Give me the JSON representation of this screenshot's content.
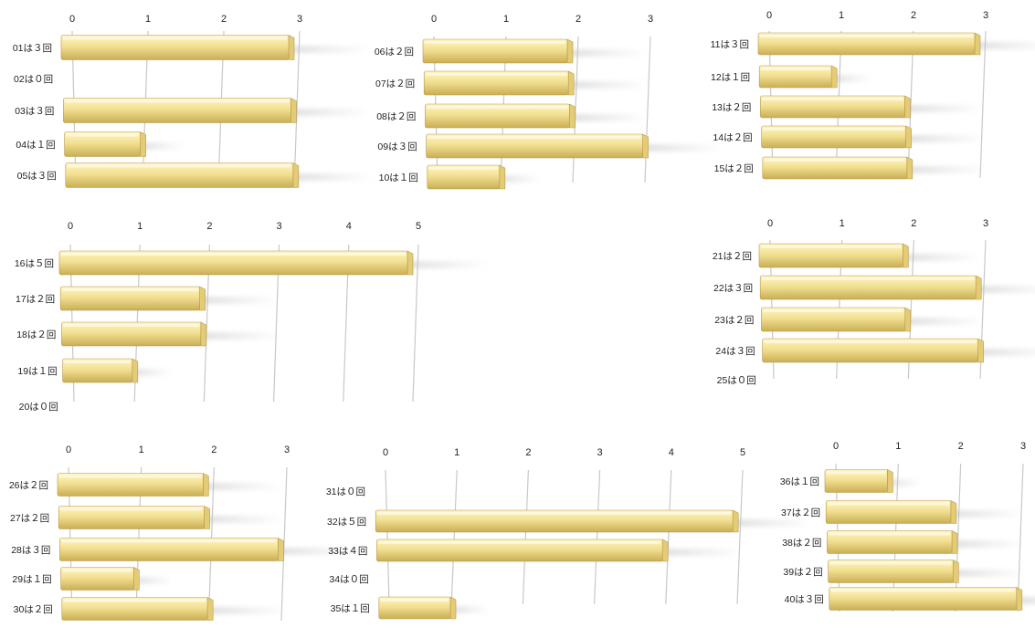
{
  "colors": {
    "bar_top": "#fff5c2",
    "bar_mid": "#f2e092",
    "bar_bottom": "#c9ae55",
    "bar_end": "#e4cc77",
    "bar_edge": "#b8984a",
    "grid": "#c8c8c8",
    "text": "#222222",
    "shadow": "#c4c4c4"
  },
  "chart_data": [
    {
      "type": "bar",
      "orientation": "horizontal",
      "xlim": [
        0,
        3
      ],
      "ticks": [
        "0",
        "1",
        "2",
        "3"
      ],
      "categories": [
        "01は３回",
        "02は０回",
        "03は３回",
        "04は１回",
        "05は３回"
      ],
      "values": [
        3,
        0,
        3,
        1,
        3
      ]
    },
    {
      "type": "bar",
      "orientation": "horizontal",
      "xlim": [
        0,
        3
      ],
      "ticks": [
        "0",
        "1",
        "2",
        "3"
      ],
      "categories": [
        "06は２回",
        "07は２回",
        "08は２回",
        "09は３回",
        "10は１回"
      ],
      "values": [
        2,
        2,
        2,
        3,
        1
      ]
    },
    {
      "type": "bar",
      "orientation": "horizontal",
      "xlim": [
        0,
        3
      ],
      "ticks": [
        "0",
        "1",
        "2",
        "3"
      ],
      "categories": [
        "11は３回",
        "12は１回",
        "13は２回",
        "14は２回",
        "15は２回"
      ],
      "values": [
        3,
        1,
        2,
        2,
        2
      ]
    },
    {
      "type": "bar",
      "orientation": "horizontal",
      "xlim": [
        0,
        5
      ],
      "ticks": [
        "0",
        "1",
        "2",
        "3",
        "4",
        "5"
      ],
      "categories": [
        "16は５回",
        "17は２回",
        "18は２回",
        "19は１回",
        "20は０回"
      ],
      "values": [
        5,
        2,
        2,
        1,
        0
      ]
    },
    {
      "type": "bar",
      "orientation": "horizontal",
      "xlim": [
        0,
        3
      ],
      "ticks": [
        "0",
        "1",
        "2",
        "3"
      ],
      "categories": [
        "21は２回",
        "22は３回",
        "23は２回",
        "24は３回",
        "25は０回"
      ],
      "values": [
        2,
        3,
        2,
        3,
        0
      ]
    },
    {
      "type": "bar",
      "orientation": "horizontal",
      "xlim": [
        0,
        3
      ],
      "ticks": [
        "0",
        "1",
        "2",
        "3"
      ],
      "categories": [
        "26は２回",
        "27は２回",
        "28は３回",
        "29は１回",
        "30は２回"
      ],
      "values": [
        2,
        2,
        3,
        1,
        2
      ]
    },
    {
      "type": "bar",
      "orientation": "horizontal",
      "xlim": [
        0,
        5
      ],
      "ticks": [
        "0",
        "1",
        "2",
        "3",
        "4",
        "5"
      ],
      "categories": [
        "31は０回",
        "32は５回",
        "33は４回",
        "34は０回",
        "35は１回"
      ],
      "values": [
        0,
        5,
        4,
        0,
        1
      ]
    },
    {
      "type": "bar",
      "orientation": "horizontal",
      "xlim": [
        0,
        3
      ],
      "ticks": [
        "0",
        "1",
        "2",
        "3"
      ],
      "categories": [
        "36は１回",
        "37は２回",
        "38は２回",
        "39は２回",
        "40は３回"
      ],
      "values": [
        1,
        2,
        2,
        2,
        3
      ]
    }
  ]
}
